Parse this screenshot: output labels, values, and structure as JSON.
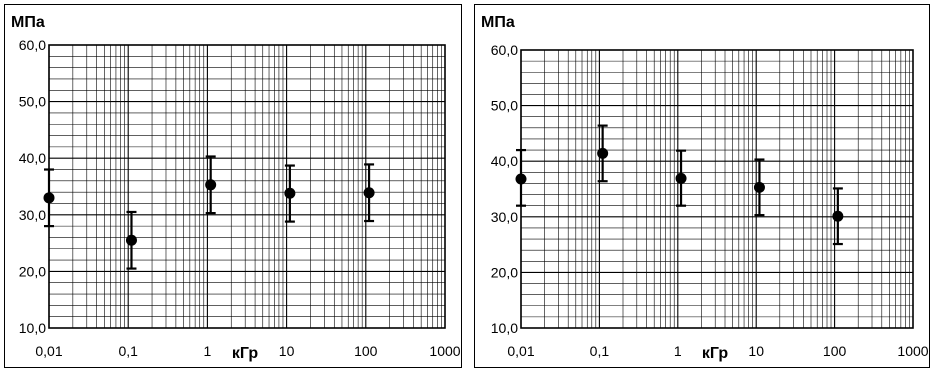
{
  "chart_data": [
    {
      "type": "scatter",
      "title": "",
      "ylabel": "МПа",
      "xlabel": "кГр",
      "xscale": "log",
      "xlim": [
        0.01,
        1000
      ],
      "ylim": [
        10,
        60
      ],
      "x_ticks": [
        "0,01",
        "0,1",
        "1",
        "10",
        "100",
        "1000"
      ],
      "y_ticks": [
        "10,0",
        "20,0",
        "30,0",
        "40,0",
        "50,0",
        "60,0"
      ],
      "grid": true,
      "series": [
        {
          "points": [
            {
              "x": 0.01,
              "y": 33.0,
              "err_low": 28.0,
              "err_high": 38.0
            },
            {
              "x": 0.11,
              "y": 25.5,
              "err_low": 20.5,
              "err_high": 30.5
            },
            {
              "x": 1.1,
              "y": 35.3,
              "err_low": 30.3,
              "err_high": 40.3
            },
            {
              "x": 11,
              "y": 33.8,
              "err_low": 28.8,
              "err_high": 38.7
            },
            {
              "x": 110,
              "y": 33.9,
              "err_low": 28.9,
              "err_high": 38.9
            }
          ]
        }
      ]
    },
    {
      "type": "scatter",
      "title": "",
      "ylabel": "МПа",
      "xlabel": "кГр",
      "xscale": "log",
      "xlim": [
        0.01,
        1000
      ],
      "ylim": [
        10,
        60
      ],
      "x_ticks": [
        "0,01",
        "0,1",
        "1",
        "10",
        "100",
        "1000"
      ],
      "y_ticks": [
        "10,0",
        "20,0",
        "30,0",
        "40,0",
        "50,0",
        "60,0"
      ],
      "grid": true,
      "series": [
        {
          "points": [
            {
              "x": 0.01,
              "y": 36.8,
              "err_low": 32.0,
              "err_high": 42.0
            },
            {
              "x": 0.11,
              "y": 41.4,
              "err_low": 36.4,
              "err_high": 46.4
            },
            {
              "x": 1.1,
              "y": 36.9,
              "err_low": 32.0,
              "err_high": 41.9
            },
            {
              "x": 11,
              "y": 35.3,
              "err_low": 30.3,
              "err_high": 40.3
            },
            {
              "x": 110,
              "y": 30.1,
              "err_low": 25.1,
              "err_high": 35.1
            }
          ]
        }
      ]
    }
  ]
}
